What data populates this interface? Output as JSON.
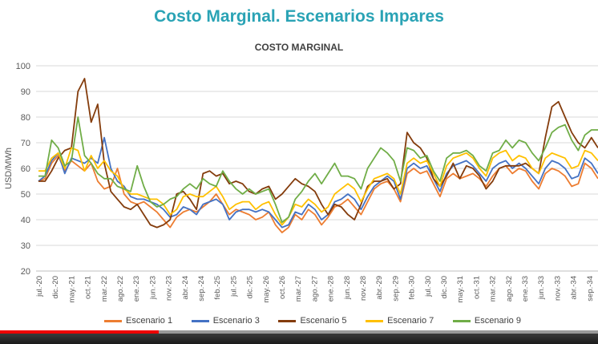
{
  "slide_title": "Costo Marginal. Escenarios Impares",
  "video": {
    "progress": 0.265
  },
  "chart_data": {
    "type": "line",
    "title": "COSTO MARGINAL",
    "ylabel": "USD/MWh",
    "xlabel": "",
    "ylim": [
      20,
      100
    ],
    "yticks": [
      20,
      30,
      40,
      50,
      60,
      70,
      80,
      90,
      100
    ],
    "grid": true,
    "legend_position": "bottom",
    "x_labels": [
      "jul.-20",
      "dic.-20",
      "may.-21",
      "oct.-21",
      "mar.-22",
      "ago.-22",
      "ene.-23",
      "jun.-23",
      "nov.-23",
      "abr.-24",
      "sep.-24",
      "feb.-25",
      "jul.-25",
      "dic.-25",
      "may.-26",
      "oct.-26",
      "mar.-27",
      "ago.-27",
      "ene.-28",
      "jun.-28",
      "nov.-28",
      "abr.-29",
      "sep.-29",
      "feb.-30",
      "jul.-30",
      "dic.-30",
      "may.-31",
      "oct.-31",
      "mar.-32",
      "ago.-32",
      "ene.-33",
      "jun.-33",
      "nov.-33",
      "abr.-34",
      "sep.-34"
    ],
    "series": [
      {
        "name": "Escenario 1",
        "color": "#ed7d31",
        "values": [
          55,
          56,
          62,
          65,
          59,
          63,
          61,
          59,
          62,
          55,
          52,
          53,
          60,
          50,
          47,
          46,
          47,
          45,
          43,
          40,
          37,
          41,
          43,
          44,
          43,
          45,
          47,
          50,
          46,
          42,
          44,
          43,
          42,
          40,
          41,
          43,
          38,
          35,
          37,
          42,
          40,
          44,
          42,
          38,
          41,
          45,
          46,
          48,
          45,
          42,
          47,
          52,
          54,
          55,
          52,
          47,
          58,
          60,
          58,
          59,
          54,
          49,
          56,
          58,
          56,
          57,
          58,
          56,
          53,
          57,
          60,
          61,
          58,
          60,
          59,
          55,
          52,
          58,
          60,
          59,
          57,
          53,
          54,
          62,
          60,
          56
        ]
      },
      {
        "name": "Escenario 3",
        "color": "#4472c4",
        "values": [
          55,
          57,
          63,
          66,
          58,
          64,
          63,
          62,
          64,
          62,
          72,
          60,
          55,
          53,
          49,
          48,
          48,
          47,
          46,
          44,
          41,
          42,
          45,
          44,
          42,
          46,
          47,
          48,
          46,
          40,
          43,
          44,
          44,
          43,
          44,
          43,
          40,
          37,
          38,
          43,
          42,
          46,
          44,
          40,
          42,
          47,
          48,
          50,
          48,
          44,
          49,
          53,
          55,
          57,
          55,
          48,
          60,
          62,
          60,
          61,
          56,
          51,
          58,
          61,
          62,
          63,
          61,
          58,
          55,
          60,
          62,
          63,
          60,
          62,
          60,
          57,
          54,
          60,
          63,
          62,
          60,
          56,
          57,
          64,
          62,
          58
        ]
      },
      {
        "name": "Escenario 5",
        "color": "#843c0c",
        "values": [
          55,
          55,
          59,
          64,
          67,
          68,
          90,
          95,
          78,
          85,
          62,
          51,
          48,
          45,
          44,
          46,
          42,
          38,
          37,
          38,
          40,
          50,
          51,
          48,
          44,
          58,
          59,
          57,
          58,
          54,
          55,
          54,
          51,
          50,
          52,
          53,
          48,
          50,
          53,
          56,
          54,
          53,
          51,
          46,
          42,
          46,
          45,
          42,
          40,
          46,
          53,
          55,
          55,
          56,
          52,
          54,
          74,
          70,
          68,
          64,
          56,
          53,
          57,
          62,
          56,
          61,
          60,
          57,
          52,
          55,
          60,
          61,
          61,
          61,
          62,
          60,
          58,
          72,
          84,
          86,
          80,
          74,
          70,
          68,
          72,
          68
        ]
      },
      {
        "name": "Escenario 7",
        "color": "#ffc000",
        "values": [
          59,
          59,
          64,
          66,
          60,
          68,
          67,
          59,
          65,
          60,
          63,
          59,
          57,
          52,
          50,
          50,
          49,
          48,
          48,
          46,
          42,
          44,
          49,
          50,
          49,
          49,
          51,
          53,
          49,
          44,
          46,
          47,
          47,
          44,
          46,
          47,
          42,
          38,
          41,
          46,
          45,
          48,
          46,
          43,
          45,
          50,
          52,
          54,
          52,
          47,
          52,
          56,
          57,
          58,
          56,
          50,
          62,
          64,
          62,
          63,
          58,
          53,
          61,
          64,
          65,
          66,
          64,
          60,
          57,
          64,
          66,
          67,
          63,
          65,
          64,
          60,
          58,
          64,
          66,
          65,
          64,
          60,
          61,
          67,
          66,
          63
        ]
      },
      {
        "name": "Escenario 9",
        "color": "#70ad47",
        "values": [
          57,
          57,
          71,
          68,
          61,
          63,
          80,
          65,
          62,
          58,
          56,
          56,
          53,
          52,
          51,
          61,
          53,
          47,
          45,
          46,
          48,
          49,
          52,
          54,
          52,
          56,
          54,
          53,
          59,
          55,
          52,
          50,
          52,
          50,
          51,
          52,
          46,
          39,
          41,
          48,
          51,
          55,
          58,
          54,
          58,
          62,
          57,
          57,
          56,
          52,
          60,
          64,
          68,
          66,
          63,
          55,
          68,
          67,
          64,
          65,
          59,
          55,
          64,
          66,
          66,
          67,
          65,
          61,
          59,
          66,
          67,
          71,
          68,
          71,
          70,
          66,
          63,
          68,
          74,
          76,
          77,
          71,
          67,
          73,
          75,
          75
        ]
      }
    ]
  },
  "legend": [
    "Escenario 1",
    "Escenario 3",
    "Escenario 5",
    "Escenario 7",
    "Escenario 9"
  ]
}
